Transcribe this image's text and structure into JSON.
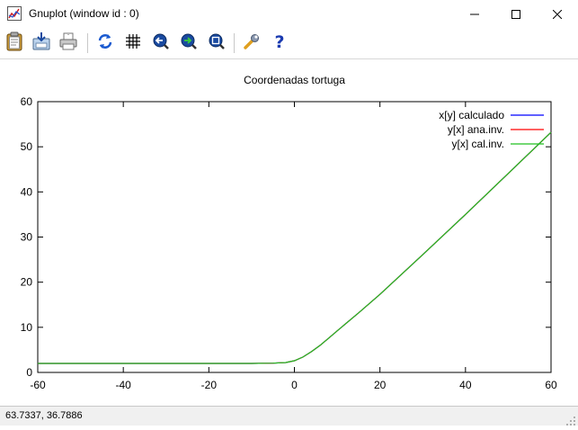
{
  "window": {
    "title": "Gnuplot (window id : 0)",
    "icons": [
      "gnuplot-app-icon",
      "minimize-icon",
      "maximize-icon",
      "close-icon"
    ]
  },
  "toolbar": {
    "buttons": [
      {
        "name": "copy-clipboard-button",
        "icon": "clipboard-icon"
      },
      {
        "name": "save-button",
        "icon": "save-icon"
      },
      {
        "name": "print-button",
        "icon": "printer-icon"
      },
      {
        "name": "replot-button",
        "icon": "refresh-icon"
      },
      {
        "name": "grid-button",
        "icon": "grid-icon"
      },
      {
        "name": "zoom-back-button",
        "icon": "arrow-left-icon"
      },
      {
        "name": "zoom-forward-button",
        "icon": "arrow-right-icon"
      },
      {
        "name": "autoscale-button",
        "icon": "zoom-icon"
      },
      {
        "name": "options-button",
        "icon": "wrench-icon"
      },
      {
        "name": "help-button",
        "icon": "help-icon"
      }
    ]
  },
  "chart_data": {
    "type": "line",
    "title": "Coordenadas tortuga",
    "xlabel": "",
    "ylabel": "",
    "xlim": [
      -60,
      60
    ],
    "ylim": [
      0,
      60
    ],
    "xticks": [
      -60,
      -40,
      -20,
      0,
      20,
      40,
      60
    ],
    "yticks": [
      0,
      10,
      20,
      30,
      40,
      50,
      60
    ],
    "grid": false,
    "legend_position": "top-right",
    "series": [
      {
        "name": "x[y] calculado",
        "color": "#0000ff",
        "x": [
          -60,
          -40,
          -20,
          -10,
          -5,
          -2,
          0,
          2,
          4,
          6,
          8,
          10,
          15,
          20,
          30,
          40,
          50,
          60
        ],
        "y": [
          2.0,
          2.0,
          2.0,
          2.0,
          2.05,
          2.2,
          2.6,
          3.4,
          4.6,
          6.0,
          7.6,
          9.2,
          13.2,
          17.3,
          26.1,
          35.0,
          44.1,
          53.2
        ]
      },
      {
        "name": "y[x] ana.inv.",
        "color": "#ff0000",
        "x": [
          -60,
          -40,
          -20,
          -10,
          -5,
          -2,
          0,
          2,
          4,
          6,
          8,
          10,
          15,
          20,
          30,
          40,
          50,
          60
        ],
        "y": [
          2.0,
          2.0,
          2.0,
          2.0,
          2.05,
          2.2,
          2.6,
          3.4,
          4.6,
          6.0,
          7.6,
          9.2,
          13.2,
          17.3,
          26.1,
          35.0,
          44.1,
          53.2
        ]
      },
      {
        "name": "y[x] cal.inv.",
        "color": "#22c022",
        "x": [
          -60,
          -40,
          -20,
          -10,
          -5,
          -2,
          0,
          2,
          4,
          6,
          8,
          10,
          15,
          20,
          30,
          40,
          50,
          60
        ],
        "y": [
          2.0,
          2.0,
          2.0,
          2.0,
          2.05,
          2.2,
          2.6,
          3.4,
          4.6,
          6.0,
          7.6,
          9.2,
          13.2,
          17.3,
          26.1,
          35.0,
          44.1,
          53.2
        ]
      }
    ]
  },
  "status": {
    "coordinates": "63.7337,  36.7886"
  }
}
